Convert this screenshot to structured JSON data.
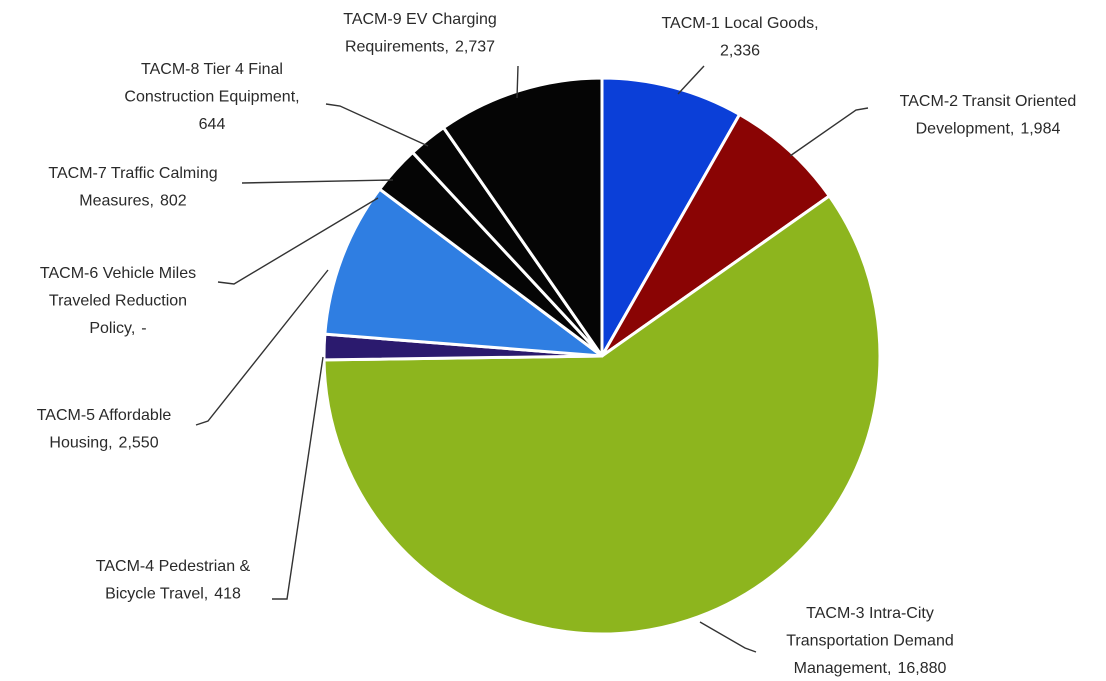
{
  "chart_data": {
    "type": "pie",
    "categories": [
      "TACM-1 Local Goods,",
      "TACM-2 Transit Oriented Development,",
      "TACM-3 Intra-City Transportation Demand Management,",
      "TACM-4 Pedestrian & Bicycle Travel,",
      "TACM-5 Affordable Housing,",
      "TACM-6 Vehicle Miles Traveled Reduction Policy,",
      "TACM-7 Traffic Calming Measures,",
      "TACM-8 Tier 4 Final Construction Equipment,",
      "TACM-9 EV Charging Requirements,"
    ],
    "values": [
      2336,
      1984,
      16880,
      418,
      2550,
      0,
      802,
      644,
      2737
    ],
    "value_labels": [
      "2,336",
      "1,984",
      "16,880",
      "418",
      "2,550",
      "-",
      "802",
      "644",
      "2,737"
    ],
    "colors": [
      "#0b3fd8",
      "#8a0404",
      "#8db51e",
      "#2b1a6e",
      "#2f7ee2",
      "#6b6b6b",
      "#050505",
      "#050505",
      "#050505"
    ]
  }
}
